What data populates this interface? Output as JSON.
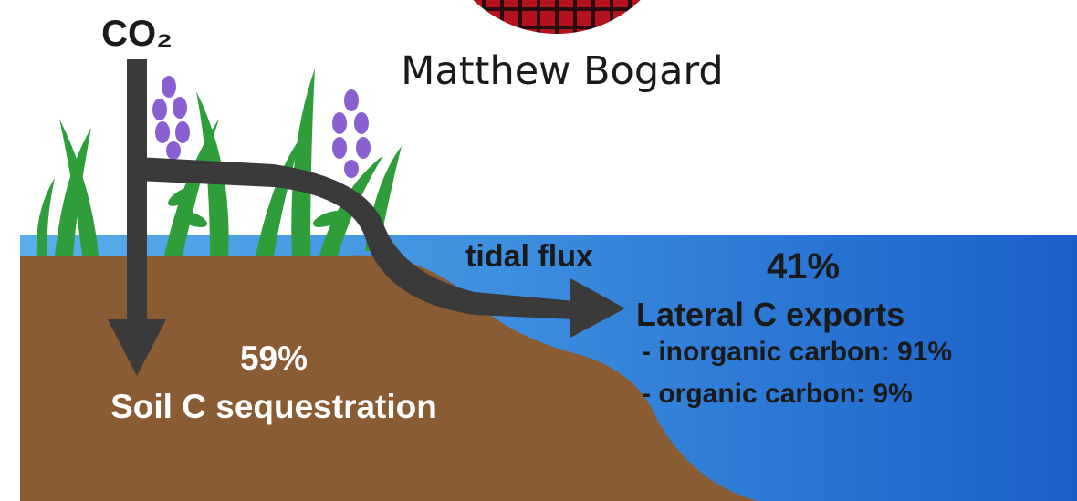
{
  "photo": {
    "caption": "Matthew Bogard"
  },
  "diagram": {
    "input_label": "CO₂",
    "flux_label": "tidal flux",
    "soil": {
      "percent": "59%",
      "label": "Soil C sequestration"
    },
    "lateral": {
      "percent": "41%",
      "label": "Lateral C exports",
      "items": [
        "- inorganic carbon: 91%",
        "- organic carbon: 9%"
      ]
    }
  }
}
